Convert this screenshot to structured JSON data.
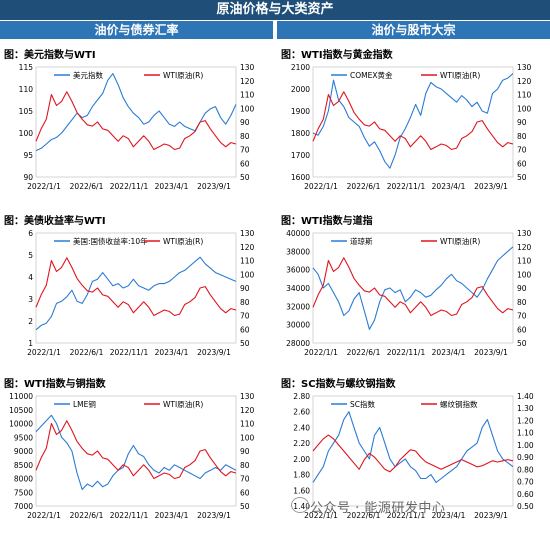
{
  "header": {
    "title": "原油价格与大类资产",
    "left_section": "油价与债券汇率",
    "right_section": "油价与股市大宗"
  },
  "watermark": {
    "text": "公众号 · 能源研发中心"
  },
  "colors": {
    "blue": "#2b7bd6",
    "red": "#e0141e",
    "header": "#1f4e79",
    "subheader": "#2e75b6"
  },
  "chart_data": [
    {
      "type": "line",
      "title": "图：美元指数与WTI",
      "x_ticks": [
        "2022/1/1",
        "2022/6/1",
        "2022/11/1",
        "2023/4/1",
        "2023/9/1"
      ],
      "left_axis": {
        "ticks": [
          "90",
          "95",
          "100",
          "105",
          "110",
          "115"
        ],
        "ylim": [
          90,
          115
        ]
      },
      "right_axis": {
        "ticks": [
          "50",
          "60",
          "70",
          "80",
          "90",
          "100",
          "110",
          "120",
          "130"
        ],
        "ylim": [
          50,
          130
        ]
      },
      "series": [
        {
          "name": "美元指数",
          "axis": "left",
          "color": "#2b7bd6",
          "values": [
            96.0,
            96.5,
            97.5,
            98.5,
            99.0,
            100.0,
            101.5,
            103.0,
            104.5,
            103.5,
            104.0,
            106.0,
            107.5,
            109.0,
            112.0,
            113.5,
            111.0,
            108.0,
            106.0,
            104.5,
            103.5,
            102.0,
            102.5,
            104.0,
            105.0,
            103.5,
            102.0,
            101.5,
            102.5,
            101.5,
            101.0,
            100.5,
            102.5,
            104.5,
            105.5,
            106.0,
            103.5,
            102.0,
            104.0,
            106.5
          ]
        },
        {
          "name": "WTI原油(R)",
          "axis": "right",
          "color": "#e0141e",
          "values": [
            76,
            85,
            92,
            110,
            102,
            105,
            112,
            105,
            97,
            92,
            88,
            87,
            90,
            85,
            84,
            80,
            76,
            80,
            78,
            72,
            76,
            80,
            76,
            70,
            72,
            74,
            73,
            70,
            71,
            78,
            80,
            83,
            90,
            91,
            85,
            80,
            75,
            72,
            75,
            74
          ]
        }
      ]
    },
    {
      "type": "line",
      "title": "图：WTI指数与黄金指数",
      "x_ticks": [
        "2022/1/1",
        "2022/6/1",
        "2022/11/1",
        "2023/4/1",
        "2023/9/1"
      ],
      "left_axis": {
        "ticks": [
          "1600",
          "1700",
          "1800",
          "1900",
          "2000",
          "2100"
        ],
        "ylim": [
          1600,
          2100
        ]
      },
      "right_axis": {
        "ticks": [
          "50",
          "60",
          "70",
          "80",
          "90",
          "100",
          "110",
          "120",
          "130"
        ],
        "ylim": [
          50,
          130
        ]
      },
      "series": [
        {
          "name": "COMEX黄金",
          "axis": "left",
          "color": "#2b7bd6",
          "values": [
            1800,
            1790,
            1830,
            1900,
            2040,
            1950,
            1920,
            1870,
            1850,
            1830,
            1780,
            1740,
            1760,
            1720,
            1670,
            1640,
            1700,
            1780,
            1820,
            1870,
            1930,
            1880,
            1980,
            2030,
            2010,
            2000,
            1980,
            1960,
            1940,
            1970,
            1950,
            1920,
            1940,
            1900,
            1890,
            1980,
            2000,
            2040,
            2050,
            2070
          ]
        },
        {
          "name": "WTI原油(R)",
          "axis": "right",
          "color": "#e0141e",
          "values": [
            76,
            85,
            92,
            110,
            102,
            105,
            112,
            105,
            97,
            92,
            88,
            87,
            90,
            85,
            84,
            80,
            76,
            80,
            78,
            72,
            76,
            80,
            76,
            70,
            72,
            74,
            73,
            70,
            71,
            78,
            80,
            83,
            90,
            91,
            85,
            80,
            75,
            72,
            75,
            74
          ]
        }
      ]
    },
    {
      "type": "line",
      "title": "图：美债收益率与WTI",
      "x_ticks": [
        "2022/1/1",
        "2022/6/1",
        "2022/11/1",
        "2023/4/1",
        "2023/9/1"
      ],
      "left_axis": {
        "ticks": [
          "1",
          "2",
          "3",
          "4",
          "5",
          "6"
        ],
        "ylim": [
          1,
          6
        ]
      },
      "right_axis": {
        "ticks": [
          "50",
          "60",
          "70",
          "80",
          "90",
          "100",
          "110",
          "120",
          "130"
        ],
        "ylim": [
          50,
          130
        ]
      },
      "series": [
        {
          "name": "美国:国债收益率:10年",
          "axis": "left",
          "color": "#2b7bd6",
          "values": [
            1.6,
            1.8,
            1.9,
            2.2,
            2.8,
            2.9,
            3.1,
            3.4,
            2.9,
            2.8,
            3.2,
            3.8,
            3.9,
            4.2,
            3.9,
            3.6,
            3.7,
            3.5,
            3.6,
            3.9,
            3.6,
            3.5,
            3.4,
            3.6,
            3.7,
            3.7,
            3.8,
            4.0,
            4.2,
            4.3,
            4.5,
            4.7,
            4.9,
            4.6,
            4.4,
            4.2,
            4.1,
            4.0,
            3.9,
            3.8
          ]
        },
        {
          "name": "WTI原油(R)",
          "axis": "right",
          "color": "#e0141e",
          "values": [
            76,
            85,
            92,
            110,
            102,
            105,
            112,
            105,
            97,
            92,
            88,
            87,
            90,
            85,
            84,
            80,
            76,
            80,
            78,
            72,
            76,
            80,
            76,
            70,
            72,
            74,
            73,
            70,
            71,
            78,
            80,
            83,
            90,
            91,
            85,
            80,
            75,
            72,
            75,
            74
          ]
        }
      ]
    },
    {
      "type": "line",
      "title": "图：WTI指数与道指",
      "x_ticks": [
        "2022/1/1",
        "2022/6/1",
        "2022/11/1",
        "2023/4/1",
        "2023/9/1"
      ],
      "left_axis": {
        "ticks": [
          "28000",
          "30000",
          "32000",
          "34000",
          "36000",
          "38000",
          "40000"
        ],
        "ylim": [
          28000,
          40000
        ]
      },
      "right_axis": {
        "ticks": [
          "50",
          "60",
          "70",
          "80",
          "90",
          "100",
          "110",
          "120",
          "130"
        ],
        "ylim": [
          50,
          130
        ]
      },
      "series": [
        {
          "name": "道琼斯",
          "axis": "left",
          "color": "#2b7bd6",
          "values": [
            36200,
            35500,
            34000,
            34500,
            33500,
            32500,
            31000,
            31500,
            32800,
            33500,
            31500,
            29500,
            30500,
            32500,
            33800,
            34000,
            33500,
            33800,
            32500,
            33000,
            33800,
            33500,
            33000,
            33200,
            33800,
            34300,
            35000,
            35500,
            34800,
            34500,
            34000,
            33500,
            33000,
            33800,
            35000,
            36000,
            37000,
            37500,
            38000,
            38500
          ]
        },
        {
          "name": "WTI原油(R)",
          "axis": "right",
          "color": "#e0141e",
          "values": [
            76,
            85,
            92,
            110,
            102,
            105,
            112,
            105,
            97,
            92,
            88,
            87,
            90,
            85,
            84,
            80,
            76,
            80,
            78,
            72,
            76,
            80,
            76,
            70,
            72,
            74,
            73,
            70,
            71,
            78,
            80,
            83,
            90,
            91,
            85,
            80,
            75,
            72,
            75,
            74
          ]
        }
      ]
    },
    {
      "type": "line",
      "title": "图：WTI指数与铜指数",
      "x_ticks": [
        "2022/1/1",
        "2022/6/1",
        "2022/11/1",
        "2023/4/1",
        "2023/9/1"
      ],
      "left_axis": {
        "ticks": [
          "7000",
          "7500",
          "8000",
          "8500",
          "9000",
          "9500",
          "10000",
          "10500",
          "11000"
        ],
        "ylim": [
          7000,
          11000
        ]
      },
      "right_axis": {
        "ticks": [
          "50",
          "60",
          "70",
          "80",
          "90",
          "100",
          "110",
          "120",
          "130"
        ],
        "ylim": [
          50,
          130
        ]
      },
      "series": [
        {
          "name": "LME铜",
          "axis": "left",
          "color": "#2b7bd6",
          "values": [
            9700,
            9900,
            10100,
            10300,
            10000,
            9500,
            9300,
            9000,
            8200,
            7600,
            7800,
            7700,
            7900,
            7700,
            7800,
            8100,
            8300,
            8400,
            8900,
            9200,
            8900,
            8800,
            8500,
            8300,
            8200,
            8400,
            8300,
            8500,
            8400,
            8300,
            8200,
            8100,
            8000,
            8200,
            8300,
            8400,
            8300,
            8500,
            8400,
            8300
          ]
        },
        {
          "name": "WTI原油(R)",
          "axis": "right",
          "color": "#e0141e",
          "values": [
            76,
            85,
            92,
            110,
            102,
            105,
            112,
            105,
            97,
            92,
            88,
            87,
            90,
            85,
            84,
            80,
            76,
            80,
            78,
            72,
            76,
            80,
            76,
            70,
            72,
            74,
            73,
            70,
            71,
            78,
            80,
            83,
            90,
            91,
            85,
            80,
            75,
            72,
            75,
            74
          ]
        }
      ]
    },
    {
      "type": "line",
      "title": "图：SC指数与螺纹钢指数",
      "x_ticks": [
        "2022/1/1",
        "2022/6/1",
        "2022/11/1",
        "2023/4/1",
        "2023/9/1"
      ],
      "left_axis": {
        "ticks": [
          "1.40",
          "1.60",
          "1.80",
          "2.00",
          "2.20",
          "2.40",
          "2.60",
          "2.80"
        ],
        "ylim": [
          1.4,
          2.8
        ]
      },
      "right_axis": {
        "ticks": [
          "0.50",
          "0.60",
          "0.70",
          "0.80",
          "0.90",
          "1.00",
          "1.10",
          "1.20",
          "1.30",
          "1.40"
        ],
        "ylim": [
          0.5,
          1.4
        ]
      },
      "series": [
        {
          "name": "SC指数",
          "axis": "left",
          "color": "#2b7bd6",
          "values": [
            1.7,
            1.8,
            1.9,
            2.1,
            2.2,
            2.3,
            2.5,
            2.6,
            2.4,
            2.2,
            2.1,
            2.0,
            2.3,
            2.4,
            2.2,
            2.0,
            1.9,
            1.95,
            2.0,
            1.9,
            1.85,
            1.75,
            1.75,
            1.8,
            1.7,
            1.75,
            1.8,
            1.85,
            1.9,
            2.0,
            2.1,
            2.15,
            2.2,
            2.4,
            2.5,
            2.3,
            2.1,
            2.0,
            1.95,
            1.9
          ]
        },
        {
          "name": "螺纹钢指数",
          "axis": "right",
          "color": "#e0141e",
          "values": [
            0.95,
            1.0,
            1.05,
            1.08,
            1.05,
            1.0,
            0.95,
            0.9,
            0.85,
            0.8,
            0.88,
            0.93,
            0.9,
            0.85,
            0.8,
            0.78,
            0.82,
            0.88,
            0.92,
            0.96,
            0.95,
            0.9,
            0.86,
            0.84,
            0.82,
            0.8,
            0.82,
            0.84,
            0.86,
            0.88,
            0.86,
            0.84,
            0.82,
            0.83,
            0.85,
            0.87,
            0.86,
            0.87,
            0.88,
            0.87
          ]
        }
      ]
    }
  ]
}
